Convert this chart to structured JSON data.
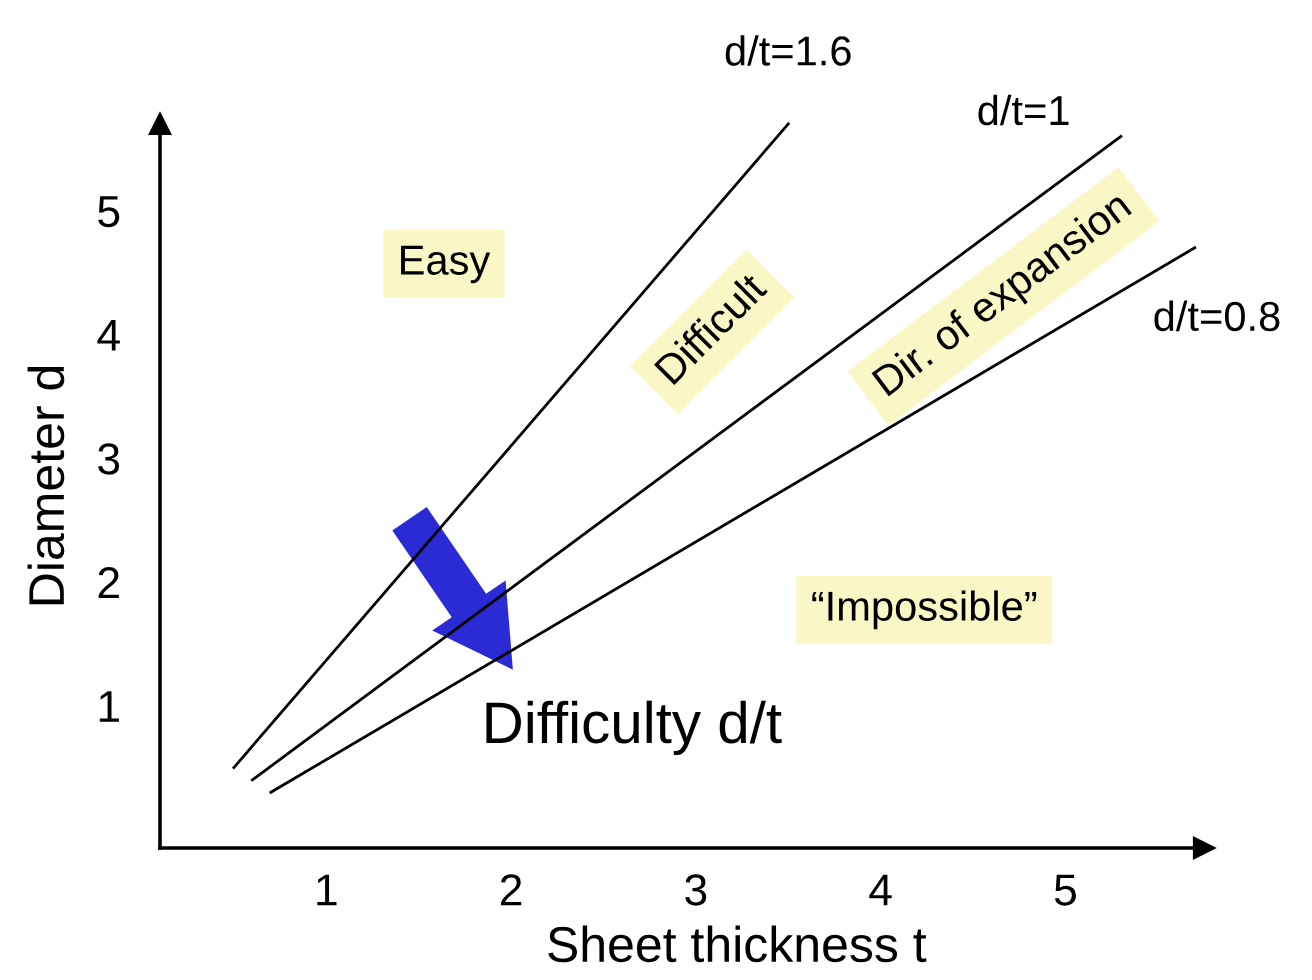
{
  "chart_data": {
    "type": "line",
    "xlabel": "Sheet thickness t",
    "ylabel": "Diameter d",
    "series": [
      {
        "name": "d/t=1.6",
        "color": "#000000",
        "x": [
          0.5,
          3.5
        ],
        "values": [
          0.5,
          5.7
        ]
      },
      {
        "name": "d/t=1",
        "color": "#000000",
        "x": [
          0.6,
          5.3
        ],
        "values": [
          0.4,
          5.6
        ]
      },
      {
        "name": "d/t=0.8",
        "color": "#000000",
        "x": [
          0.7,
          5.7
        ],
        "values": [
          0.3,
          4.7
        ]
      }
    ],
    "annotations": [
      "Easy",
      "Difficult",
      "Dir. of expansion",
      "“Impossible”",
      "Difficulty d/t"
    ],
    "xlim": [
      0.1,
      5.75
    ],
    "ylim": [
      -0.15,
      5.7
    ],
    "xticks": [
      1,
      2,
      3,
      4,
      5
    ],
    "yticks": [
      1,
      2,
      3,
      4,
      5
    ],
    "line_style": "solid"
  }
}
